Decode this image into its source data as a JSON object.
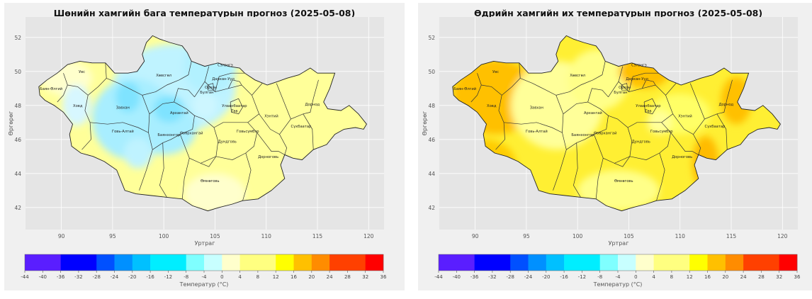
{
  "maps": [
    {
      "id": "min",
      "title": "Шөнийн хамгийн бага температурын прогноз (2025-05-08)",
      "xlabel": "Уртраг",
      "ylabel": "Өргөрөг",
      "colorbar_label": "Температур (°C)",
      "base_color": "#ffff99",
      "blobs": [
        {
          "lon": 101.0,
          "lat": 49.0,
          "rx": 6.0,
          "ry": 2.6,
          "color": "#bff3ff"
        },
        {
          "lon": 97.0,
          "lat": 47.2,
          "rx": 4.0,
          "ry": 2.4,
          "color": "#a8eeff"
        },
        {
          "lon": 104.5,
          "lat": 50.3,
          "rx": 2.6,
          "ry": 1.6,
          "color": "#b2f1ff"
        },
        {
          "lon": 100.0,
          "lat": 46.7,
          "rx": 3.2,
          "ry": 1.6,
          "color": "#a8eeff"
        },
        {
          "lon": 96.5,
          "lat": 48.5,
          "rx": 1.2,
          "ry": 0.9,
          "color": "#7fe3ff"
        },
        {
          "lon": 100.5,
          "lat": 47.8,
          "rx": 1.5,
          "ry": 0.8,
          "color": "#7fe3ff"
        },
        {
          "lon": 97.5,
          "lat": 45.2,
          "rx": 1.4,
          "ry": 0.9,
          "color": "#bff3ff"
        },
        {
          "lon": 91.5,
          "lat": 48.0,
          "rx": 1.4,
          "ry": 1.2,
          "color": "#d7f7ff"
        },
        {
          "lon": 104.0,
          "lat": 48.0,
          "rx": 1.2,
          "ry": 0.8,
          "color": "#cdf6ff"
        }
      ],
      "warm_color": "#ffffcc",
      "warm_blobs": [
        {
          "lon": 105.0,
          "lat": 42.8,
          "rx": 3.0,
          "ry": 1.2
        },
        {
          "lon": 90.5,
          "lat": 49.6,
          "rx": 2.5,
          "ry": 1.0
        }
      ]
    },
    {
      "id": "max",
      "title": "Өдрийн хамгийн их температурын прогноз (2025-05-08)",
      "xlabel": "Уртраг",
      "ylabel": "Өргөрөг",
      "colorbar_label": "Температур (°C)",
      "base_color": "#ffef33",
      "blobs": [
        {
          "lon": 92.0,
          "lat": 48.5,
          "rx": 4.2,
          "ry": 2.2,
          "color": "#ffc000"
        },
        {
          "lon": 91.0,
          "lat": 44.5,
          "rx": 3.0,
          "ry": 1.5,
          "color": "#ffcc00"
        },
        {
          "lon": 98.0,
          "lat": 48.0,
          "rx": 4.5,
          "ry": 2.6,
          "color": "#ffff99"
        },
        {
          "lon": 102.0,
          "lat": 49.5,
          "rx": 3.0,
          "ry": 1.8,
          "color": "#ffff88"
        },
        {
          "lon": 104.0,
          "lat": 43.0,
          "rx": 4.0,
          "ry": 1.2,
          "color": "#ffff88"
        },
        {
          "lon": 106.5,
          "lat": 50.0,
          "rx": 2.5,
          "ry": 1.0,
          "color": "#ffc000"
        },
        {
          "lon": 115.5,
          "lat": 48.3,
          "rx": 1.5,
          "ry": 1.4,
          "color": "#ffc000"
        },
        {
          "lon": 112.5,
          "lat": 44.6,
          "rx": 1.3,
          "ry": 1.6,
          "color": "#ffbb00"
        },
        {
          "lon": 108.0,
          "lat": 47.0,
          "rx": 1.2,
          "ry": 0.7,
          "color": "#ffff99"
        },
        {
          "lon": 88.8,
          "lat": 45.6,
          "rx": 0.8,
          "ry": 0.8,
          "color": "#ff8000"
        }
      ],
      "warm_color": "#ffff66",
      "warm_blobs": [
        {
          "lon": 110.0,
          "lat": 47.5,
          "rx": 3.0,
          "ry": 1.2
        }
      ]
    }
  ],
  "axes": {
    "lon_range": [
      86.5,
      121.5
    ],
    "lat_range": [
      40.7,
      53.2
    ],
    "lon_ticks": [
      90,
      95,
      100,
      105,
      110,
      115,
      120
    ],
    "lat_ticks": [
      42,
      44,
      46,
      48,
      50,
      52
    ]
  },
  "colorbar": {
    "ticks": [
      -44,
      -40,
      -36,
      -32,
      -28,
      -24,
      -20,
      -16,
      -12,
      -8,
      -4,
      0,
      4,
      8,
      12,
      16,
      20,
      24,
      28,
      32,
      36
    ],
    "bins": [
      {
        "from": -44,
        "to": -36,
        "color": "#5a1eff"
      },
      {
        "from": -36,
        "to": -28,
        "color": "#0000ff"
      },
      {
        "from": -28,
        "to": -24,
        "color": "#0050ff"
      },
      {
        "from": -24,
        "to": -20,
        "color": "#0090ff"
      },
      {
        "from": -20,
        "to": -16,
        "color": "#00c0ff"
      },
      {
        "from": -16,
        "to": -8,
        "color": "#00eeff"
      },
      {
        "from": -8,
        "to": -4,
        "color": "#7fffff"
      },
      {
        "from": -4,
        "to": 0,
        "color": "#c8ffff"
      },
      {
        "from": 0,
        "to": 4,
        "color": "#ffffcc"
      },
      {
        "from": 4,
        "to": 12,
        "color": "#ffff80"
      },
      {
        "from": 12,
        "to": 16,
        "color": "#ffff00"
      },
      {
        "from": 16,
        "to": 20,
        "color": "#ffc000"
      },
      {
        "from": 20,
        "to": 24,
        "color": "#ff8c00"
      },
      {
        "from": 24,
        "to": 32,
        "color": "#ff4000"
      },
      {
        "from": 32,
        "to": 36,
        "color": "#ff0000"
      }
    ]
  },
  "aimags": [
    {
      "name": "Увс",
      "lon": 92.0,
      "lat": 49.9
    },
    {
      "name": "Баян-Өлгий",
      "lon": 89.0,
      "lat": 48.9
    },
    {
      "name": "Ховд",
      "lon": 91.6,
      "lat": 47.9
    },
    {
      "name": "Завхан",
      "lon": 96.0,
      "lat": 47.8
    },
    {
      "name": "Хөвсгөл",
      "lon": 100.0,
      "lat": 49.7
    },
    {
      "name": "Архангай",
      "lon": 101.5,
      "lat": 47.5
    },
    {
      "name": "Булган",
      "lon": 104.2,
      "lat": 48.7
    },
    {
      "name": "Орхон",
      "lon": 104.6,
      "lat": 49.0
    },
    {
      "name": "Сэлэнгэ",
      "lon": 106.0,
      "lat": 50.3
    },
    {
      "name": "Дархан-Уул",
      "lon": 105.8,
      "lat": 49.5
    },
    {
      "name": "Улаанбаатар",
      "lon": 106.9,
      "lat": 47.9
    },
    {
      "name": "Төв",
      "lon": 106.9,
      "lat": 47.6
    },
    {
      "name": "Хэнтий",
      "lon": 110.5,
      "lat": 47.3
    },
    {
      "name": "Дорнод",
      "lon": 114.5,
      "lat": 48.0
    },
    {
      "name": "Сүхбаатар",
      "lon": 113.4,
      "lat": 46.7
    },
    {
      "name": "Говь-Алтай",
      "lon": 96.0,
      "lat": 46.4
    },
    {
      "name": "Баянхонгор",
      "lon": 100.5,
      "lat": 46.2
    },
    {
      "name": "Өвөрхангай",
      "lon": 102.7,
      "lat": 46.3
    },
    {
      "name": "Дундговь",
      "lon": 106.2,
      "lat": 45.8
    },
    {
      "name": "Говьсүмбэр",
      "lon": 108.2,
      "lat": 46.4
    },
    {
      "name": "Дорноговь",
      "lon": 110.2,
      "lat": 44.9
    },
    {
      "name": "Өмнөговь",
      "lon": 104.5,
      "lat": 43.5
    }
  ]
}
